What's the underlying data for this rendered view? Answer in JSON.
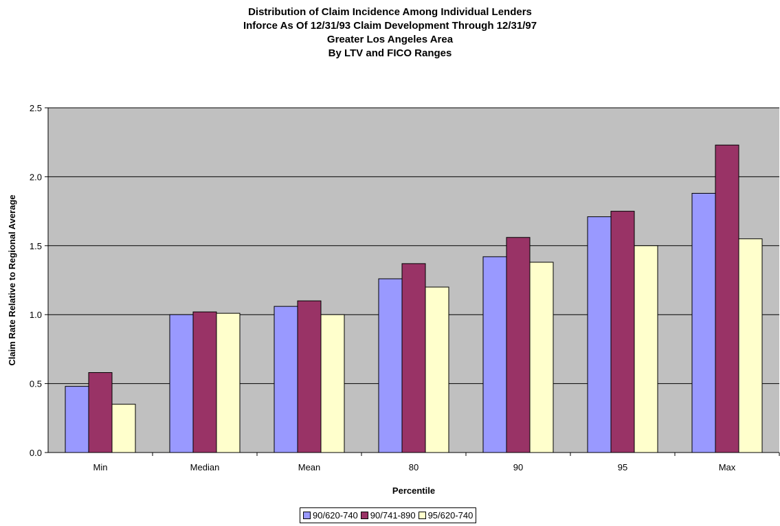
{
  "chart_data": {
    "type": "bar",
    "title_lines": [
      "Distribution of Claim Incidence Among Individual Lenders",
      "Inforce As Of 12/31/93 Claim Development Through 12/31/97",
      "Greater Los Angeles Area",
      "By LTV and FICO Ranges"
    ],
    "xlabel": "Percentile",
    "ylabel": "Claim Rate Relative to Regional Average",
    "categories": [
      "Min",
      "Median",
      "Mean",
      "80",
      "90",
      "95",
      "Max"
    ],
    "ylim": [
      0,
      2.5
    ],
    "yticks": [
      "0.0",
      "0.5",
      "1.0",
      "1.5",
      "2.0",
      "2.5"
    ],
    "grid": true,
    "legend_position": "bottom",
    "plot_background": "#c0c0c0",
    "series": [
      {
        "name": "90/620-740",
        "color": "#9999ff",
        "values": [
          0.48,
          1.0,
          1.06,
          1.26,
          1.42,
          1.71,
          1.88
        ]
      },
      {
        "name": "90/741-890",
        "color": "#993366",
        "values": [
          0.58,
          1.02,
          1.1,
          1.37,
          1.56,
          1.75,
          2.23
        ]
      },
      {
        "name": "95/620-740",
        "color": "#ffffcc",
        "values": [
          0.35,
          1.01,
          1.0,
          1.2,
          1.38,
          1.5,
          1.55
        ]
      }
    ]
  }
}
